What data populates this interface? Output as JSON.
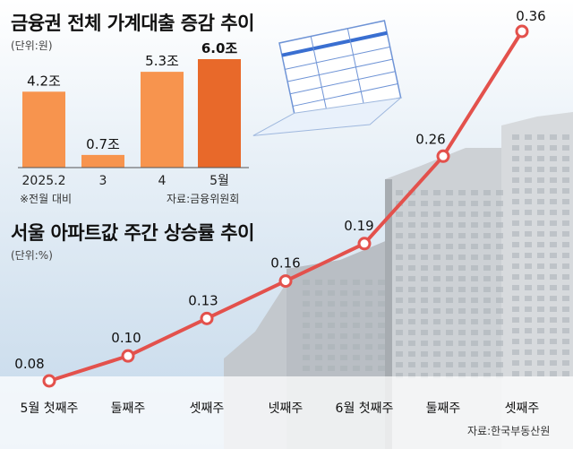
{
  "colors": {
    "bar_light": "#f7944e",
    "bar_dark": "#e8692a",
    "line": "#e3514c",
    "marker_fill": "#ffffff",
    "sky": "#d4e4f1",
    "building": "#c9ccd0",
    "building_dark": "#9ea3a8",
    "doc_blue": "#3a6fd1"
  },
  "icons": {
    "document": "document-icon",
    "background": "apartment-buildings-photo"
  },
  "chart_data": [
    {
      "type": "bar",
      "title": "금융권 전체 가계대출 증감 추이",
      "unit_label": "(단위:원)",
      "categories": [
        "2025.2",
        "3",
        "4",
        "5월"
      ],
      "values": [
        4.2,
        0.7,
        5.3,
        6.0
      ],
      "value_labels": [
        "4.2조",
        "0.7조",
        "5.3조",
        "6.0조"
      ],
      "highlight_index": 3,
      "ylim": [
        0,
        6.0
      ],
      "note": "※전월 대비",
      "source": "자료:금융위원회",
      "grid": false,
      "legend": "none"
    },
    {
      "type": "line",
      "title": "서울 아파트값 주간 상승률 추이",
      "unit_label": "(단위:%)",
      "categories": [
        "5월 첫째주",
        "둘째주",
        "셋째주",
        "넷째주",
        "6월 첫째주",
        "둘째주",
        "셋째주"
      ],
      "values": [
        0.08,
        0.1,
        0.13,
        0.16,
        0.19,
        0.26,
        0.36
      ],
      "value_labels": [
        "0.08",
        "0.10",
        "0.13",
        "0.16",
        "0.19",
        "0.26",
        "0.36"
      ],
      "ylim": [
        0.08,
        0.36
      ],
      "source": "자료:한국부동산원",
      "grid": false,
      "legend": "none"
    }
  ]
}
